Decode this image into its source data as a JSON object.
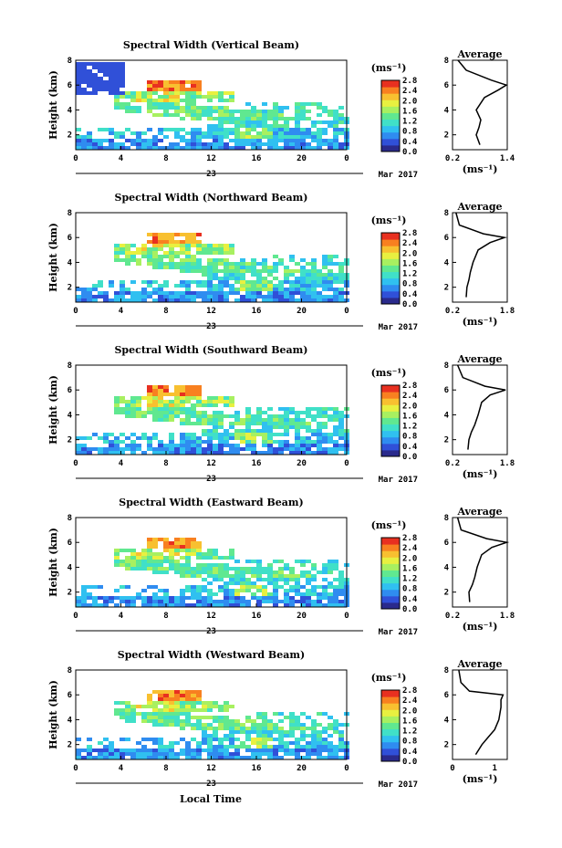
{
  "figure": {
    "xlabel": "Local Time",
    "month_label": "Mar 2017",
    "day_label": "23",
    "height_label": "Height (km)",
    "unit_label": "(ms⁻¹)",
    "average_title": "Average",
    "colorscale": [
      "#2a2a8c",
      "#3050d8",
      "#2f8cf0",
      "#30c0f0",
      "#40e0c8",
      "#60e890",
      "#a8f060",
      "#e8f040",
      "#f8c030",
      "#f88020",
      "#e83020"
    ]
  },
  "chart_data": [
    {
      "type": "heatmap",
      "title": "Spectral Width (Vertical Beam)",
      "x_ticks": [
        "0",
        "4",
        "8",
        "12",
        "16",
        "20",
        "0"
      ],
      "y_ticks": [
        "2",
        "4",
        "6",
        "8"
      ],
      "xlim": [
        0,
        24
      ],
      "ylim": [
        0.8,
        8
      ],
      "colorbar_ticks": [
        "2.8",
        "2.4",
        "2.0",
        "1.6",
        "1.2",
        "0.8",
        "0.4",
        "0.0"
      ],
      "colorbar_range": [
        0,
        2.8
      ],
      "average": {
        "x_ticks": [
          "0.2",
          "1.4"
        ],
        "xlim": [
          0.2,
          1.4
        ],
        "y_ticks": [
          "2",
          "4",
          "6",
          "8"
        ],
        "height": [
          1.2,
          2.0,
          2.6,
          3.2,
          4.0,
          5.0,
          5.6,
          6.0,
          6.4,
          7.2,
          8.0
        ],
        "value": [
          0.8,
          0.72,
          0.78,
          0.82,
          0.72,
          0.9,
          1.2,
          1.38,
          1.05,
          0.5,
          0.32
        ]
      }
    },
    {
      "type": "heatmap",
      "title": "Spectral Width (Northward Beam)",
      "x_ticks": [
        "0",
        "4",
        "8",
        "12",
        "16",
        "20",
        "0"
      ],
      "y_ticks": [
        "2",
        "4",
        "6",
        "8"
      ],
      "xlim": [
        0,
        24
      ],
      "ylim": [
        0.8,
        8
      ],
      "colorbar_ticks": [
        "2.8",
        "2.4",
        "2.0",
        "1.6",
        "1.2",
        "0.8",
        "0.4",
        "0.0"
      ],
      "colorbar_range": [
        0,
        2.8
      ],
      "average": {
        "x_ticks": [
          "0.2",
          "1.8"
        ],
        "xlim": [
          0.2,
          1.8
        ],
        "y_ticks": [
          "2",
          "4",
          "6",
          "8"
        ],
        "height": [
          1.2,
          2.0,
          2.6,
          3.2,
          4.0,
          5.0,
          5.6,
          6.0,
          6.3,
          7.0,
          8.0
        ],
        "value": [
          0.6,
          0.62,
          0.68,
          0.72,
          0.8,
          0.95,
          1.3,
          1.72,
          1.1,
          0.4,
          0.3
        ]
      }
    },
    {
      "type": "heatmap",
      "title": "Spectral Width (Southward Beam)",
      "x_ticks": [
        "0",
        "4",
        "8",
        "12",
        "16",
        "20",
        "0"
      ],
      "y_ticks": [
        "2",
        "4",
        "6",
        "8"
      ],
      "xlim": [
        0,
        24
      ],
      "ylim": [
        0.8,
        8
      ],
      "colorbar_ticks": [
        "2.8",
        "2.4",
        "2.0",
        "1.6",
        "1.2",
        "0.8",
        "0.4",
        "0.0"
      ],
      "colorbar_range": [
        0,
        2.8
      ],
      "average": {
        "x_ticks": [
          "0.2",
          "1.8"
        ],
        "xlim": [
          0.2,
          1.8
        ],
        "y_ticks": [
          "2",
          "4",
          "6",
          "8"
        ],
        "height": [
          1.2,
          2.0,
          2.6,
          3.2,
          4.0,
          5.0,
          5.6,
          6.0,
          6.3,
          7.0,
          8.0
        ],
        "value": [
          0.65,
          0.68,
          0.75,
          0.85,
          0.95,
          1.05,
          1.3,
          1.75,
          1.15,
          0.5,
          0.35
        ]
      }
    },
    {
      "type": "heatmap",
      "title": "Spectral Width (Eastward Beam)",
      "x_ticks": [
        "0",
        "4",
        "8",
        "12",
        "16",
        "20",
        "0"
      ],
      "y_ticks": [
        "2",
        "4",
        "6",
        "8"
      ],
      "xlim": [
        0,
        24
      ],
      "ylim": [
        0.8,
        8
      ],
      "colorbar_ticks": [
        "2.8",
        "2.4",
        "2.0",
        "1.6",
        "1.2",
        "0.8",
        "0.4",
        "0.0"
      ],
      "colorbar_range": [
        0,
        2.8
      ],
      "average": {
        "x_ticks": [
          "0.2",
          "1.8"
        ],
        "xlim": [
          0.2,
          1.8
        ],
        "y_ticks": [
          "2",
          "4",
          "6",
          "8"
        ],
        "height": [
          1.2,
          2.0,
          2.6,
          3.2,
          4.0,
          5.0,
          5.6,
          6.0,
          6.3,
          7.0,
          8.0
        ],
        "value": [
          0.7,
          0.68,
          0.78,
          0.85,
          0.92,
          1.05,
          1.35,
          1.78,
          1.2,
          0.45,
          0.35
        ]
      }
    },
    {
      "type": "heatmap",
      "title": "Spectral Width (Westward Beam)",
      "x_ticks": [
        "0",
        "4",
        "8",
        "12",
        "16",
        "20",
        "0"
      ],
      "y_ticks": [
        "2",
        "4",
        "6",
        "8"
      ],
      "xlim": [
        0,
        24
      ],
      "ylim": [
        0.8,
        8
      ],
      "colorbar_ticks": [
        "2.8",
        "2.4",
        "2.0",
        "1.6",
        "1.2",
        "0.8",
        "0.4",
        "0.0"
      ],
      "colorbar_range": [
        0,
        2.8
      ],
      "average": {
        "x_ticks": [
          "0",
          "1"
        ],
        "xlim": [
          0,
          1.3
        ],
        "y_ticks": [
          "2",
          "4",
          "6",
          "8"
        ],
        "height": [
          1.2,
          2.0,
          2.6,
          3.2,
          4.0,
          5.0,
          5.6,
          6.0,
          6.3,
          7.0,
          8.0
        ],
        "value": [
          0.55,
          0.7,
          0.85,
          1.0,
          1.1,
          1.15,
          1.15,
          1.2,
          0.4,
          0.2,
          0.15
        ]
      }
    }
  ]
}
